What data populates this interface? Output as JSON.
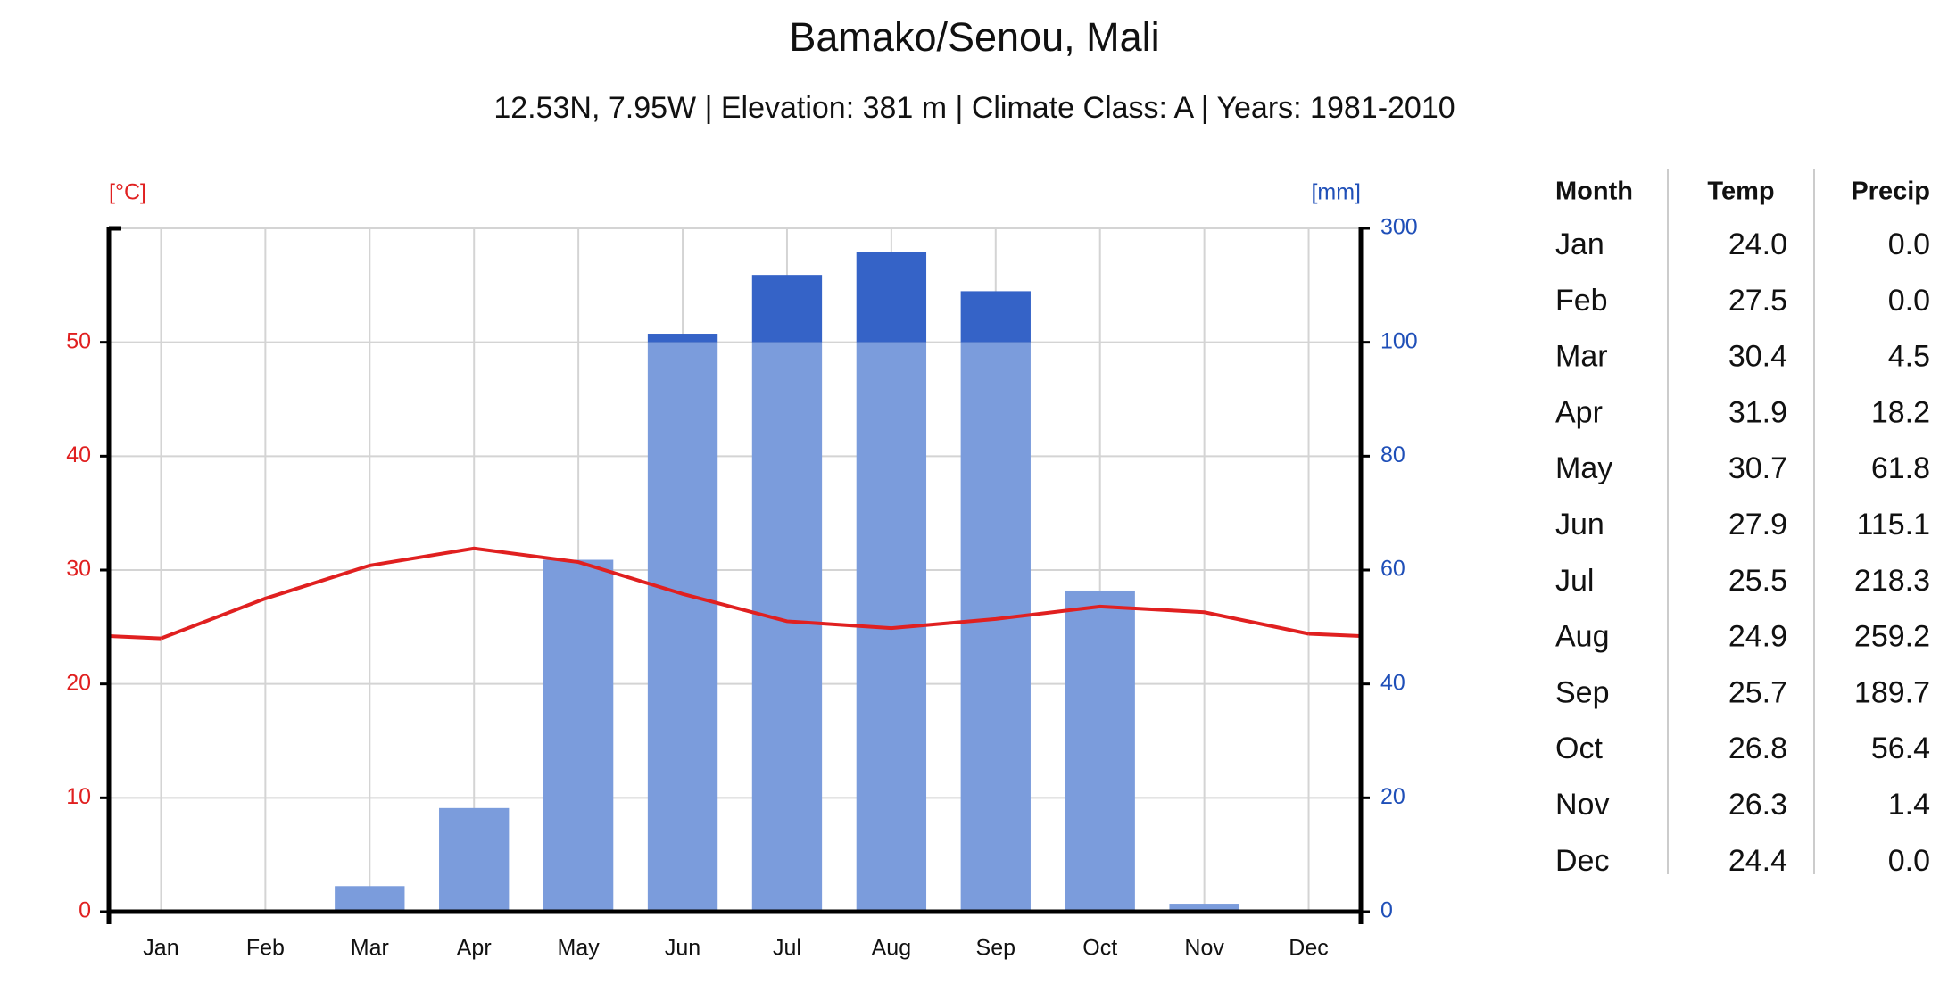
{
  "chart_data": {
    "type": "climate",
    "title": "Bamako/Senou, Mali",
    "subtitle": "12.53N, 7.95W | Elevation: 381 m | Climate Class: A | Years: 1981-2010",
    "ylabel": "[°C]",
    "y2label": "[mm]",
    "categories": [
      "Jan",
      "Feb",
      "Mar",
      "Apr",
      "May",
      "Jun",
      "Jul",
      "Aug",
      "Sep",
      "Oct",
      "Nov",
      "Dec"
    ],
    "series": [
      {
        "type": "line",
        "color": "#e02020",
        "values": [
          24.0,
          27.5,
          30.4,
          31.9,
          30.7,
          27.9,
          25.5,
          24.9,
          25.7,
          26.8,
          26.3,
          24.4
        ]
      },
      {
        "type": "bar",
        "axis": "y2",
        "color": "#7b9cdc",
        "color_above": "#3563c7",
        "values": [
          0.0,
          0.0,
          4.5,
          18.2,
          61.8,
          115.1,
          218.3,
          259.2,
          189.7,
          56.4,
          1.4,
          0.0
        ]
      }
    ],
    "ylim": [
      0,
      60
    ],
    "yticks": [
      0,
      10,
      20,
      30,
      40,
      50
    ],
    "ycolor": "#e02020",
    "y2lim": [
      0,
      300
    ],
    "y2ticks": [
      0,
      20,
      40,
      60,
      80,
      100,
      300
    ],
    "y2color": "#1f4fb8",
    "grid": true
  },
  "table": {
    "columns": [
      "Month",
      "Temp",
      "Precip"
    ],
    "rows": [
      [
        "Jan",
        "24.0",
        "0.0"
      ],
      [
        "Feb",
        "27.5",
        "0.0"
      ],
      [
        "Mar",
        "30.4",
        "4.5"
      ],
      [
        "Apr",
        "31.9",
        "18.2"
      ],
      [
        "May",
        "30.7",
        "61.8"
      ],
      [
        "Jun",
        "27.9",
        "115.1"
      ],
      [
        "Jul",
        "25.5",
        "218.3"
      ],
      [
        "Aug",
        "24.9",
        "259.2"
      ],
      [
        "Sep",
        "25.7",
        "189.7"
      ],
      [
        "Oct",
        "26.8",
        "56.4"
      ],
      [
        "Nov",
        "26.3",
        "1.4"
      ],
      [
        "Dec",
        "24.4",
        "0.0"
      ]
    ]
  }
}
